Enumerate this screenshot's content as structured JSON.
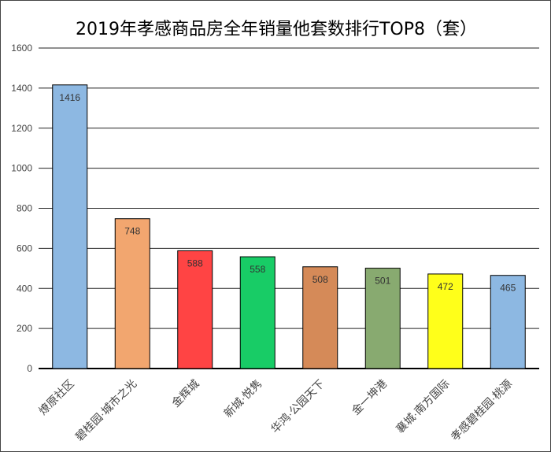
{
  "chart_data": {
    "type": "bar",
    "title": "2019年孝感商品房全年销量他套数排行TOP8（套）",
    "xlabel": "",
    "ylabel": "",
    "ylim": [
      0,
      1600
    ],
    "yticks": [
      0,
      200,
      400,
      600,
      800,
      1000,
      1200,
      1400,
      1600
    ],
    "grid": true,
    "legend": "none",
    "categories": [
      "燎原社区",
      "碧桂园·城市之光",
      "金辉城",
      "新城·悦隽",
      "华鸿·公园天下",
      "金一坤港",
      "襄城·南方国际",
      "孝感碧桂园·桃源"
    ],
    "values": [
      1416,
      748,
      588,
      558,
      508,
      501,
      472,
      465
    ],
    "colors": [
      "#8db8e2",
      "#f2a66f",
      "#ff4444",
      "#18cc66",
      "#d58a58",
      "#88aa70",
      "#ffff1a",
      "#8db8e2"
    ]
  }
}
